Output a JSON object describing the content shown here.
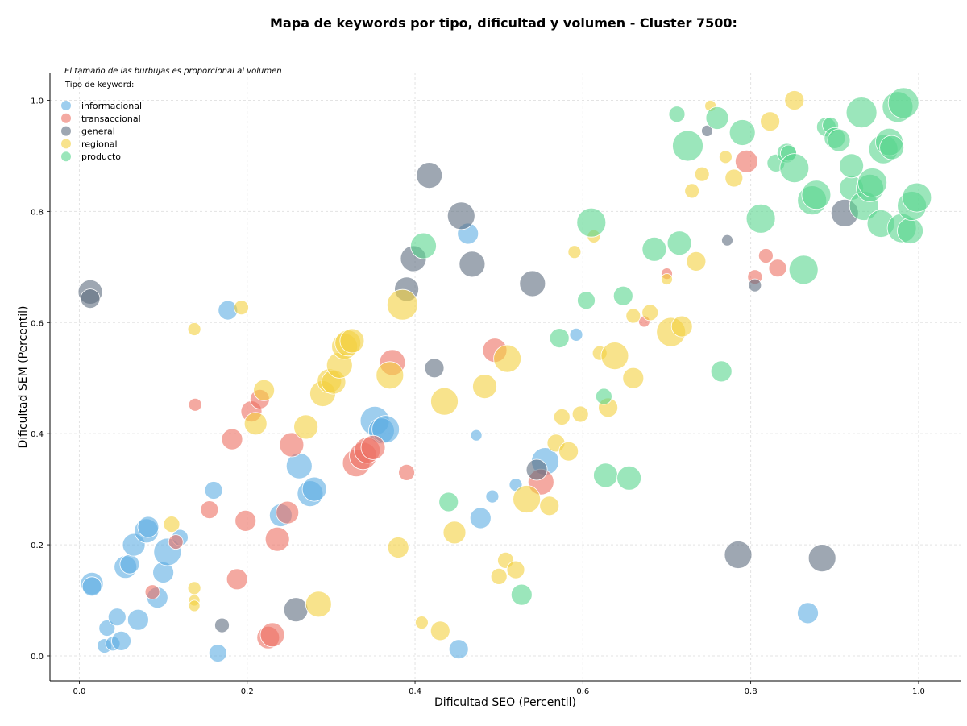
{
  "chart_data": {
    "type": "scatter",
    "title": "Mapa de keywords por tipo, dificultad y volumen - Cluster 7500:",
    "xlabel": "Dificultad SEO (Percentil)",
    "ylabel": "Dificultad SEM (Percentil)",
    "xlim": [
      -0.035,
      1.05
    ],
    "ylim": [
      -0.045,
      1.05
    ],
    "xticks": [
      "0.0",
      "0.2",
      "0.4",
      "0.6",
      "0.8",
      "1.0"
    ],
    "yticks": [
      "0.0",
      "0.2",
      "0.4",
      "0.6",
      "0.8",
      "1.0"
    ],
    "grid": true,
    "note": "El tamaño de las burbujas es proporcional al volumen",
    "legend_title": "Tipo de keyword:",
    "legend_position": "top-left",
    "series": [
      {
        "name": "informacional",
        "color": "#5dade2",
        "points": [
          [
            0.015,
            0.13,
            14
          ],
          [
            0.015,
            0.125,
            12
          ],
          [
            0.03,
            0.018,
            9
          ],
          [
            0.033,
            0.05,
            10
          ],
          [
            0.04,
            0.022,
            9
          ],
          [
            0.045,
            0.07,
            11
          ],
          [
            0.05,
            0.027,
            12
          ],
          [
            0.055,
            0.16,
            14
          ],
          [
            0.06,
            0.165,
            12
          ],
          [
            0.065,
            0.2,
            14
          ],
          [
            0.07,
            0.065,
            13
          ],
          [
            0.08,
            0.225,
            15
          ],
          [
            0.082,
            0.232,
            13
          ],
          [
            0.093,
            0.105,
            13
          ],
          [
            0.1,
            0.15,
            13
          ],
          [
            0.105,
            0.187,
            17
          ],
          [
            0.12,
            0.213,
            10
          ],
          [
            0.16,
            0.298,
            11
          ],
          [
            0.165,
            0.005,
            11
          ],
          [
            0.177,
            0.622,
            12
          ],
          [
            0.24,
            0.253,
            14
          ],
          [
            0.262,
            0.342,
            16
          ],
          [
            0.275,
            0.292,
            16
          ],
          [
            0.28,
            0.3,
            15
          ],
          [
            0.352,
            0.423,
            18
          ],
          [
            0.36,
            0.405,
            16
          ],
          [
            0.365,
            0.408,
            17
          ],
          [
            0.463,
            0.76,
            13
          ],
          [
            0.473,
            0.397,
            7
          ],
          [
            0.452,
            0.012,
            12
          ],
          [
            0.478,
            0.248,
            13
          ],
          [
            0.492,
            0.287,
            8
          ],
          [
            0.52,
            0.308,
            8
          ],
          [
            0.555,
            0.35,
            17
          ],
          [
            0.592,
            0.578,
            8
          ],
          [
            0.868,
            0.077,
            13
          ]
        ]
      },
      {
        "name": "transaccional",
        "color": "#ec7063",
        "points": [
          [
            0.138,
            0.452,
            8
          ],
          [
            0.115,
            0.205,
            9
          ],
          [
            0.087,
            0.115,
            9
          ],
          [
            0.155,
            0.263,
            11
          ],
          [
            0.182,
            0.39,
            13
          ],
          [
            0.188,
            0.138,
            13
          ],
          [
            0.198,
            0.243,
            13
          ],
          [
            0.205,
            0.44,
            13
          ],
          [
            0.215,
            0.462,
            12
          ],
          [
            0.225,
            0.033,
            14
          ],
          [
            0.23,
            0.038,
            15
          ],
          [
            0.236,
            0.21,
            15
          ],
          [
            0.248,
            0.258,
            14
          ],
          [
            0.253,
            0.38,
            15
          ],
          [
            0.33,
            0.347,
            17
          ],
          [
            0.338,
            0.36,
            17
          ],
          [
            0.343,
            0.37,
            16
          ],
          [
            0.35,
            0.375,
            15
          ],
          [
            0.373,
            0.528,
            16
          ],
          [
            0.39,
            0.33,
            10
          ],
          [
            0.495,
            0.55,
            15
          ],
          [
            0.55,
            0.313,
            16
          ],
          [
            0.673,
            0.602,
            7
          ],
          [
            0.7,
            0.688,
            7
          ],
          [
            0.795,
            0.89,
            14
          ],
          [
            0.805,
            0.682,
            9
          ],
          [
            0.818,
            0.72,
            9
          ],
          [
            0.832,
            0.698,
            11
          ]
        ]
      },
      {
        "name": "general",
        "color": "#5d6d7e",
        "points": [
          [
            0.013,
            0.655,
            15
          ],
          [
            0.013,
            0.643,
            12
          ],
          [
            0.17,
            0.055,
            9
          ],
          [
            0.258,
            0.083,
            15
          ],
          [
            0.39,
            0.66,
            15
          ],
          [
            0.398,
            0.715,
            16
          ],
          [
            0.417,
            0.865,
            16
          ],
          [
            0.423,
            0.518,
            12
          ],
          [
            0.455,
            0.792,
            17
          ],
          [
            0.468,
            0.705,
            16
          ],
          [
            0.54,
            0.67,
            16
          ],
          [
            0.545,
            0.335,
            13
          ],
          [
            0.748,
            0.945,
            7
          ],
          [
            0.772,
            0.748,
            7
          ],
          [
            0.785,
            0.182,
            17
          ],
          [
            0.805,
            0.667,
            8
          ],
          [
            0.885,
            0.176,
            17
          ],
          [
            0.912,
            0.797,
            17
          ]
        ]
      },
      {
        "name": "regional",
        "color": "#f4d03f",
        "points": [
          [
            0.11,
            0.237,
            10
          ],
          [
            0.137,
            0.588,
            8
          ],
          [
            0.137,
            0.122,
            8
          ],
          [
            0.137,
            0.1,
            7
          ],
          [
            0.137,
            0.09,
            7
          ],
          [
            0.193,
            0.627,
            9
          ],
          [
            0.21,
            0.418,
            14
          ],
          [
            0.22,
            0.478,
            13
          ],
          [
            0.27,
            0.412,
            15
          ],
          [
            0.285,
            0.093,
            16
          ],
          [
            0.29,
            0.472,
            16
          ],
          [
            0.298,
            0.495,
            15
          ],
          [
            0.303,
            0.493,
            15
          ],
          [
            0.31,
            0.523,
            16
          ],
          [
            0.316,
            0.557,
            16
          ],
          [
            0.32,
            0.563,
            16
          ],
          [
            0.325,
            0.567,
            15
          ],
          [
            0.37,
            0.505,
            17
          ],
          [
            0.38,
            0.195,
            13
          ],
          [
            0.385,
            0.632,
            19
          ],
          [
            0.408,
            0.06,
            8
          ],
          [
            0.43,
            0.045,
            12
          ],
          [
            0.435,
            0.458,
            17
          ],
          [
            0.447,
            0.222,
            14
          ],
          [
            0.483,
            0.485,
            15
          ],
          [
            0.5,
            0.143,
            10
          ],
          [
            0.508,
            0.172,
            10
          ],
          [
            0.52,
            0.155,
            11
          ],
          [
            0.51,
            0.535,
            17
          ],
          [
            0.533,
            0.282,
            17
          ],
          [
            0.56,
            0.27,
            12
          ],
          [
            0.568,
            0.383,
            11
          ],
          [
            0.575,
            0.43,
            10
          ],
          [
            0.583,
            0.368,
            12
          ],
          [
            0.597,
            0.435,
            10
          ],
          [
            0.59,
            0.727,
            8
          ],
          [
            0.613,
            0.755,
            8
          ],
          [
            0.62,
            0.545,
            9
          ],
          [
            0.63,
            0.447,
            12
          ],
          [
            0.638,
            0.54,
            17
          ],
          [
            0.66,
            0.612,
            9
          ],
          [
            0.66,
            0.5,
            13
          ],
          [
            0.68,
            0.618,
            10
          ],
          [
            0.7,
            0.678,
            7
          ],
          [
            0.705,
            0.583,
            18
          ],
          [
            0.718,
            0.593,
            13
          ],
          [
            0.73,
            0.837,
            9
          ],
          [
            0.735,
            0.71,
            12
          ],
          [
            0.742,
            0.867,
            9
          ],
          [
            0.752,
            0.99,
            7
          ],
          [
            0.77,
            0.898,
            8
          ],
          [
            0.78,
            0.86,
            11
          ],
          [
            0.823,
            0.962,
            12
          ],
          [
            0.852,
            1.0,
            12
          ]
        ]
      },
      {
        "name": "producto",
        "color": "#58d68d",
        "points": [
          [
            0.41,
            0.738,
            16
          ],
          [
            0.44,
            0.277,
            12
          ],
          [
            0.527,
            0.11,
            13
          ],
          [
            0.572,
            0.572,
            12
          ],
          [
            0.604,
            0.64,
            11
          ],
          [
            0.61,
            0.78,
            18
          ],
          [
            0.625,
            0.467,
            10
          ],
          [
            0.627,
            0.325,
            15
          ],
          [
            0.648,
            0.648,
            12
          ],
          [
            0.655,
            0.32,
            15
          ],
          [
            0.685,
            0.732,
            15
          ],
          [
            0.712,
            0.975,
            10
          ],
          [
            0.715,
            0.743,
            15
          ],
          [
            0.725,
            0.918,
            19
          ],
          [
            0.76,
            0.968,
            14
          ],
          [
            0.765,
            0.512,
            13
          ],
          [
            0.79,
            0.942,
            16
          ],
          [
            0.812,
            0.787,
            18
          ],
          [
            0.83,
            0.887,
            11
          ],
          [
            0.843,
            0.905,
            12
          ],
          [
            0.845,
            0.905,
            10
          ],
          [
            0.852,
            0.878,
            18
          ],
          [
            0.863,
            0.695,
            18
          ],
          [
            0.873,
            0.82,
            18
          ],
          [
            0.878,
            0.83,
            18
          ],
          [
            0.89,
            0.952,
            12
          ],
          [
            0.895,
            0.955,
            10
          ],
          [
            0.9,
            0.932,
            13
          ],
          [
            0.905,
            0.928,
            14
          ],
          [
            0.92,
            0.842,
            15
          ],
          [
            0.92,
            0.882,
            15
          ],
          [
            0.932,
            0.978,
            19
          ],
          [
            0.935,
            0.81,
            18
          ],
          [
            0.942,
            0.842,
            17
          ],
          [
            0.945,
            0.852,
            18
          ],
          [
            0.955,
            0.778,
            17
          ],
          [
            0.958,
            0.912,
            18
          ],
          [
            0.965,
            0.925,
            17
          ],
          [
            0.968,
            0.915,
            15
          ],
          [
            0.975,
            0.988,
            19
          ],
          [
            0.98,
            0.77,
            18
          ],
          [
            0.982,
            0.995,
            19
          ],
          [
            0.99,
            0.765,
            16
          ],
          [
            0.992,
            0.81,
            18
          ],
          [
            0.998,
            0.825,
            18
          ]
        ]
      }
    ]
  }
}
